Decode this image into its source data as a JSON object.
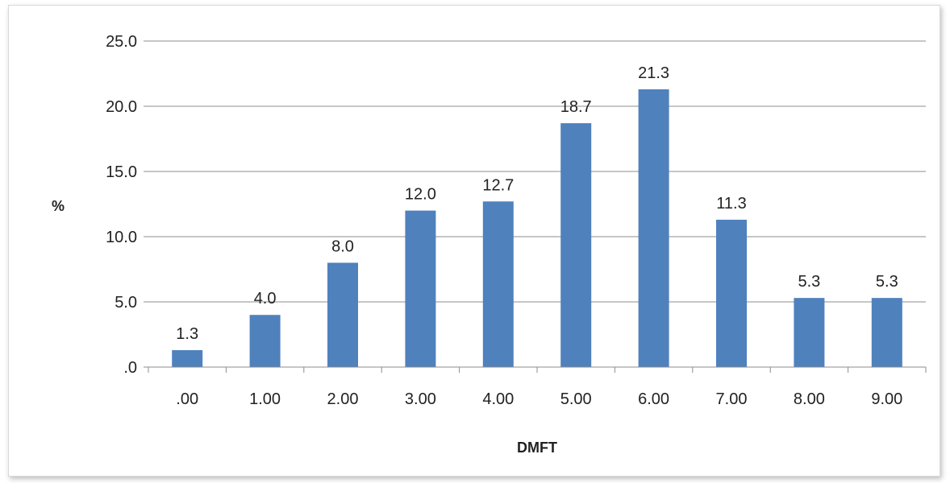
{
  "chart_data": {
    "type": "bar",
    "title": "",
    "xlabel": "DMFT",
    "ylabel": "%",
    "categories": [
      ".00",
      "1.00",
      "2.00",
      "3.00",
      "4.00",
      "5.00",
      "6.00",
      "7.00",
      "8.00",
      "9.00"
    ],
    "values": [
      1.3,
      4.0,
      8.0,
      12.0,
      12.7,
      18.7,
      21.3,
      11.3,
      5.3,
      5.3
    ],
    "data_labels": [
      "1.3",
      "4.0",
      "8.0",
      "12.0",
      "12.7",
      "18.7",
      "21.3",
      "11.3",
      "5.3",
      "5.3"
    ],
    "ylim": [
      0,
      25
    ],
    "yticks": [
      0,
      5,
      10,
      15,
      20,
      25
    ],
    "ytick_labels": [
      ".0",
      "5.0",
      "10.0",
      "15.0",
      "20.0",
      "25.0"
    ],
    "grid": true,
    "legend": "none",
    "bar_color": "#4f81bd"
  }
}
